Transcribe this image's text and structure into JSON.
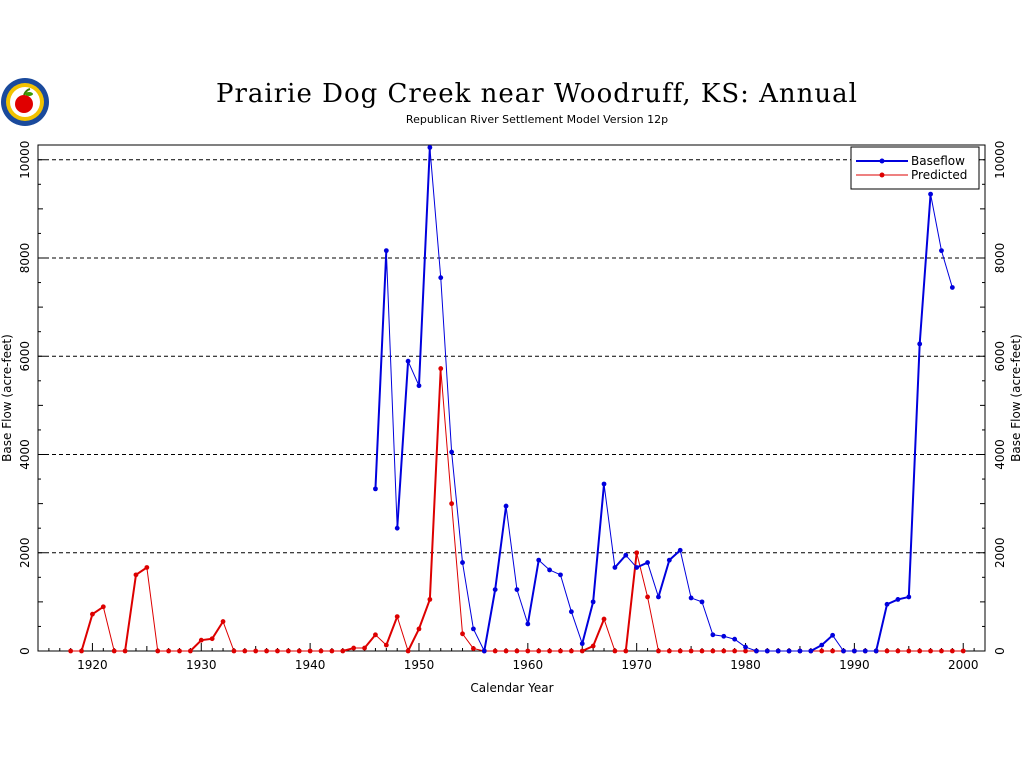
{
  "chart_data": {
    "type": "line",
    "title": "Prairie Dog Creek near Woodruff, KS: Annual",
    "subtitle": "Republican River Settlement Model Version 12p",
    "xlabel": "Calendar Year",
    "ylabel": "Base Flow (acre-feet)",
    "ylabel_right": "Base Flow (acre-feet)",
    "xlim": [
      1915,
      2002
    ],
    "ylim": [
      0,
      10300
    ],
    "xticks": [
      1920,
      1930,
      1940,
      1950,
      1960,
      1970,
      1980,
      1990,
      2000
    ],
    "yticks": [
      0,
      2000,
      4000,
      6000,
      8000,
      10000
    ],
    "grid_y": [
      2000,
      4000,
      6000,
      8000,
      10000
    ],
    "legend_position": "top-right",
    "series": [
      {
        "name": "Baseflow",
        "color": "#0000dd",
        "x": [
          1946,
          1947,
          1948,
          1949,
          1950,
          1951,
          1952,
          1953,
          1954,
          1955,
          1956,
          1957,
          1958,
          1959,
          1960,
          1961,
          1962,
          1963,
          1964,
          1965,
          1966,
          1967,
          1968,
          1969,
          1970,
          1971,
          1972,
          1973,
          1974,
          1975,
          1976,
          1977,
          1978,
          1979,
          1980,
          1981,
          1982,
          1983,
          1984,
          1985,
          1986,
          1987,
          1988,
          1989,
          1990,
          1991,
          1992,
          1993,
          1994,
          1995,
          1996,
          1997,
          1998,
          1999
        ],
        "values": [
          3300,
          8150,
          2500,
          5900,
          5400,
          10250,
          7600,
          4050,
          1800,
          450,
          0,
          1250,
          2950,
          1250,
          550,
          1850,
          1650,
          1550,
          800,
          150,
          1000,
          3400,
          1700,
          1950,
          1700,
          1800,
          1100,
          1850,
          2050,
          1080,
          1000,
          330,
          300,
          240,
          80,
          0,
          0,
          0,
          0,
          0,
          0,
          120,
          320,
          0,
          0,
          0,
          0,
          950,
          1050,
          1100,
          6250,
          9300,
          8150,
          7400
        ]
      },
      {
        "name": "Predicted",
        "color": "#dd0000",
        "x": [
          1918,
          1919,
          1920,
          1921,
          1922,
          1923,
          1924,
          1925,
          1926,
          1927,
          1928,
          1929,
          1930,
          1931,
          1932,
          1933,
          1934,
          1935,
          1936,
          1937,
          1938,
          1939,
          1940,
          1941,
          1942,
          1943,
          1944,
          1945,
          1946,
          1947,
          1948,
          1949,
          1950,
          1951,
          1952,
          1953,
          1954,
          1955,
          1956,
          1957,
          1958,
          1959,
          1960,
          1961,
          1962,
          1963,
          1964,
          1965,
          1966,
          1967,
          1968,
          1969,
          1970,
          1971,
          1972,
          1973,
          1974,
          1975,
          1976,
          1977,
          1978,
          1979,
          1980,
          1981,
          1982,
          1983,
          1984,
          1985,
          1986,
          1987,
          1988,
          1989,
          1990,
          1991,
          1992,
          1993,
          1994,
          1995,
          1996,
          1997,
          1998,
          1999,
          2000
        ],
        "values": [
          0,
          0,
          750,
          900,
          0,
          0,
          1550,
          1700,
          0,
          0,
          0,
          0,
          220,
          250,
          600,
          0,
          0,
          0,
          0,
          0,
          0,
          0,
          0,
          0,
          0,
          0,
          60,
          60,
          330,
          120,
          700,
          0,
          450,
          1050,
          5750,
          3000,
          350,
          50,
          0,
          0,
          0,
          0,
          0,
          0,
          0,
          0,
          0,
          0,
          100,
          650,
          0,
          0,
          2000,
          1100,
          0,
          0,
          0,
          0,
          0,
          0,
          0,
          0,
          0,
          0,
          0,
          0,
          0,
          0,
          0,
          0,
          0,
          0,
          0,
          0,
          0,
          0,
          0,
          0,
          0,
          0,
          0,
          0,
          0
        ]
      }
    ]
  },
  "logo": {
    "name": "apple-seal-logo"
  }
}
